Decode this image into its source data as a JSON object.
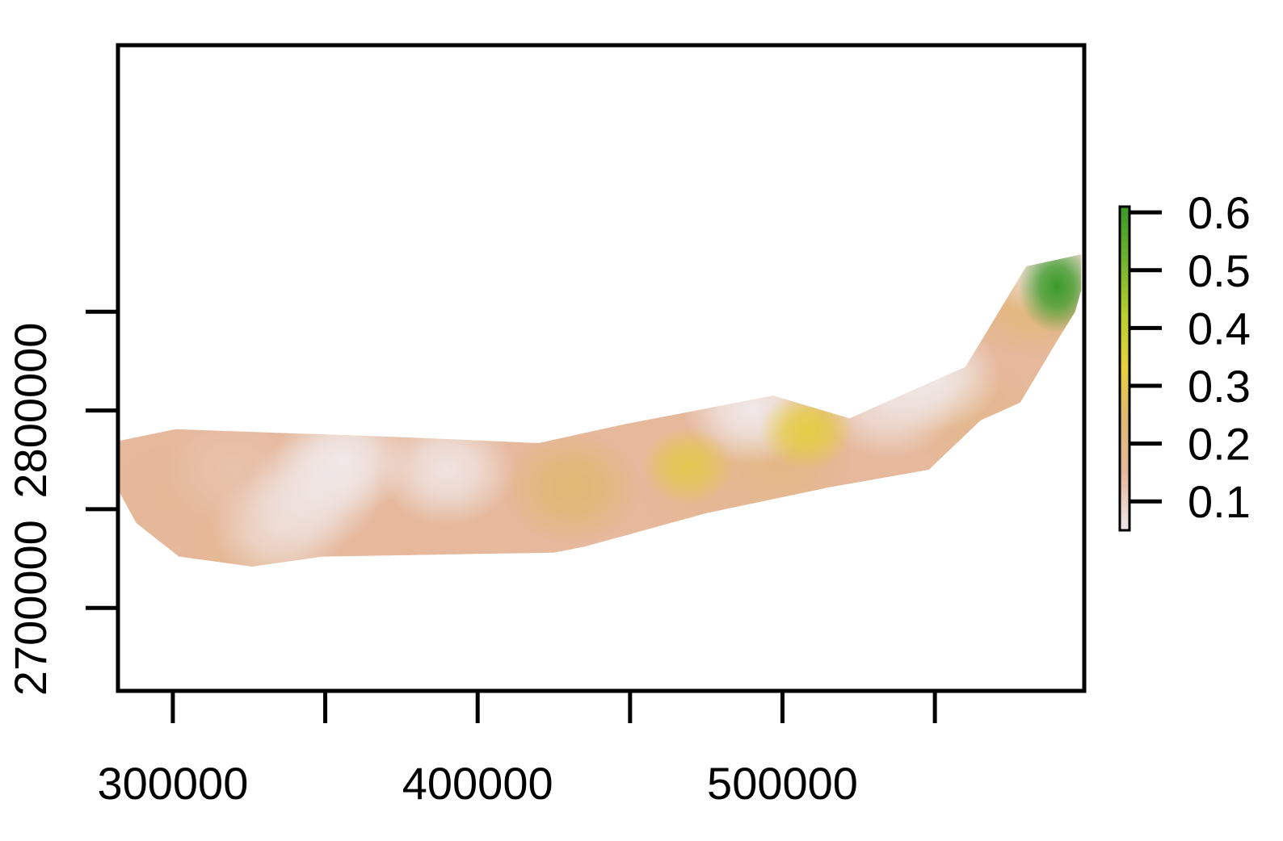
{
  "chart_data": {
    "type": "heatmap",
    "title": "",
    "xlabel": "",
    "ylabel": "",
    "xlim": [
      282000,
      599000
    ],
    "ylim": [
      2658000,
      2985000
    ],
    "x_ticks": [
      300000,
      350000,
      400000,
      450000,
      500000,
      550000
    ],
    "x_tick_labels": [
      "300000",
      "",
      "400000",
      "",
      "500000",
      ""
    ],
    "y_ticks": [
      2700000,
      2750000,
      2800000,
      2850000
    ],
    "y_tick_labels": [
      "2700000",
      "",
      "2800000",
      ""
    ],
    "grid": false,
    "legend": {
      "type": "colorbar",
      "placement": "right",
      "range": [
        0.05,
        0.61
      ],
      "ticks": [
        0.1,
        0.2,
        0.3,
        0.4,
        0.5,
        0.6
      ],
      "tick_labels": [
        "0.1",
        "0.2",
        "0.3",
        "0.4",
        "0.5",
        "0.6"
      ],
      "colors": [
        {
          "value": 0.05,
          "color": "#f0e8e8"
        },
        {
          "value": 0.15,
          "color": "#e6b89c"
        },
        {
          "value": 0.25,
          "color": "#e0b870"
        },
        {
          "value": 0.33,
          "color": "#e6d040"
        },
        {
          "value": 0.42,
          "color": "#b8d030"
        },
        {
          "value": 0.52,
          "color": "#6fb030"
        },
        {
          "value": 0.61,
          "color": "#3a9a28"
        }
      ]
    },
    "region_boundary": [
      [
        282000,
        2784500
      ],
      [
        301000,
        2790500
      ],
      [
        375000,
        2786500
      ],
      [
        420000,
        2783500
      ],
      [
        448000,
        2793000
      ],
      [
        497000,
        2807500
      ],
      [
        522000,
        2796000
      ],
      [
        560000,
        2822000
      ],
      [
        580000,
        2873000
      ],
      [
        598000,
        2879000
      ],
      [
        598000,
        2861000
      ],
      [
        596000,
        2850000
      ],
      [
        590000,
        2835000
      ],
      [
        578000,
        2804000
      ],
      [
        565000,
        2795000
      ],
      [
        548000,
        2770000
      ],
      [
        515000,
        2761000
      ],
      [
        475000,
        2748000
      ],
      [
        435000,
        2731000
      ],
      [
        425000,
        2728000
      ],
      [
        349000,
        2726000
      ],
      [
        326000,
        2721000
      ],
      [
        302000,
        2726000
      ],
      [
        288000,
        2743000
      ],
      [
        282000,
        2760000
      ]
    ],
    "hotspots": [
      {
        "x": 590000,
        "y": 2863000,
        "value": 0.61
      },
      {
        "x": 582000,
        "y": 2855000,
        "value": 0.22
      },
      {
        "x": 508000,
        "y": 2790000,
        "value": 0.32
      },
      {
        "x": 469000,
        "y": 2772000,
        "value": 0.3
      },
      {
        "x": 431000,
        "y": 2761000,
        "value": 0.24
      },
      {
        "x": 500000,
        "y": 2775000,
        "value": 0.2
      },
      {
        "x": 560000,
        "y": 2800000,
        "value": 0.18
      },
      {
        "x": 300000,
        "y": 2757000,
        "value": 0.16
      },
      {
        "x": 325000,
        "y": 2729000,
        "value": 0.17
      },
      {
        "x": 380000,
        "y": 2748000,
        "value": 0.15
      },
      {
        "x": 475000,
        "y": 2760000,
        "value": 0.17
      },
      {
        "x": 320000,
        "y": 2770000,
        "value": 0.13
      },
      {
        "x": 346000,
        "y": 2758000,
        "value": 0.06
      },
      {
        "x": 335000,
        "y": 2741000,
        "value": 0.08
      },
      {
        "x": 356000,
        "y": 2775000,
        "value": 0.05
      },
      {
        "x": 390000,
        "y": 2770000,
        "value": 0.06
      },
      {
        "x": 490000,
        "y": 2801000,
        "value": 0.05
      },
      {
        "x": 535000,
        "y": 2804000,
        "value": 0.07
      },
      {
        "x": 549000,
        "y": 2818000,
        "value": 0.05
      },
      {
        "x": 587000,
        "y": 2876000,
        "value": 0.06
      }
    ]
  }
}
